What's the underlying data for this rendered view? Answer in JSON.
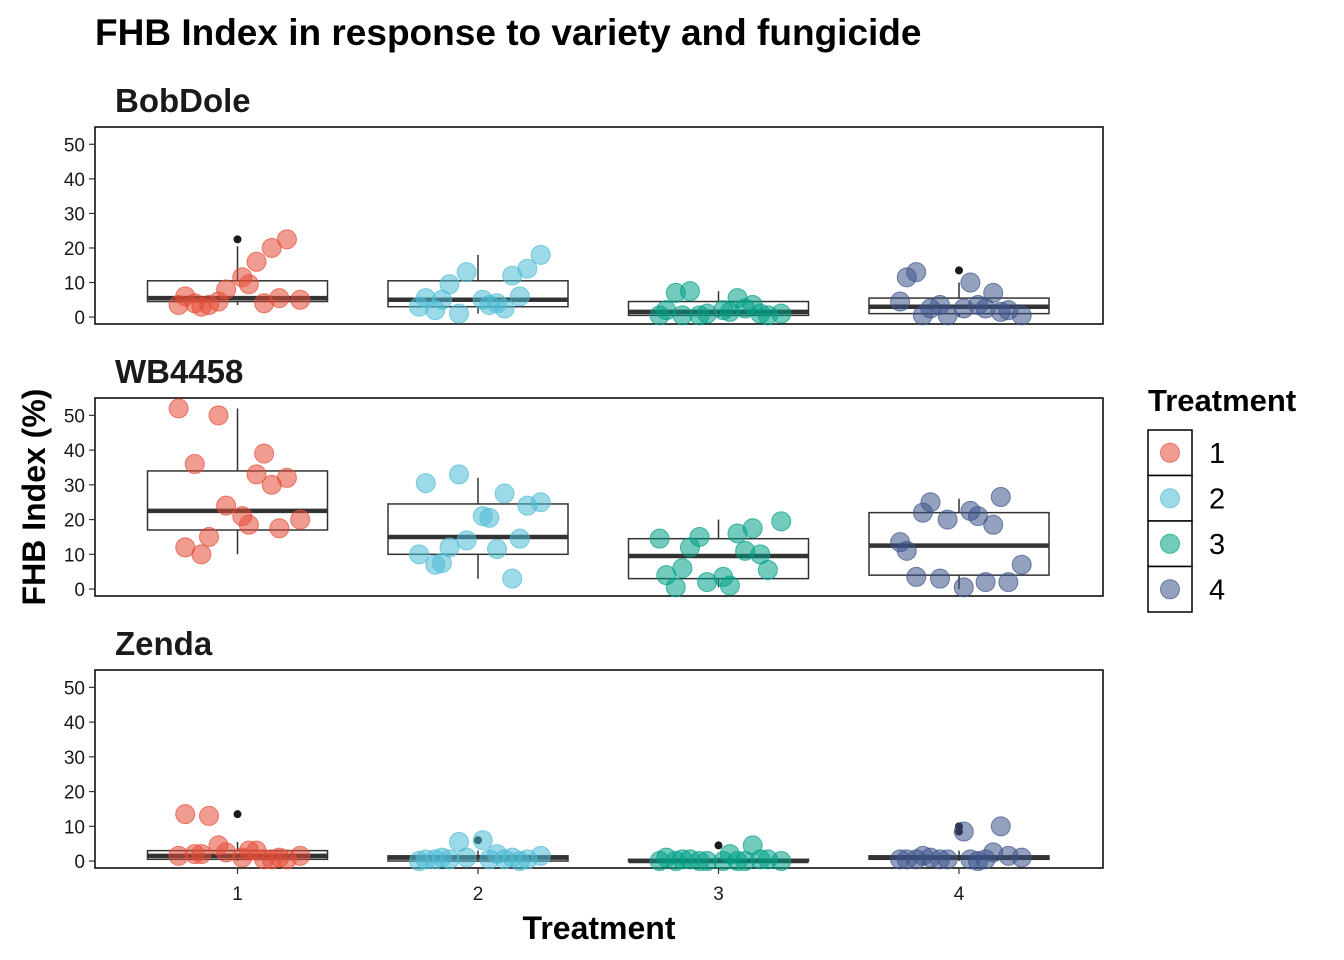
{
  "chart_data": {
    "type": "box+jitter",
    "title": "FHB Index in response to variety and fungicide",
    "xlabel": "Treatment",
    "ylabel": "FHB Index (%)",
    "categories": [
      "1",
      "2",
      "3",
      "4"
    ],
    "yticks": [
      0,
      10,
      20,
      30,
      40,
      50
    ],
    "ylim": [
      -2,
      55
    ],
    "legend": {
      "title": "Treatment",
      "position": "right",
      "items": [
        {
          "label": "1",
          "color": "#E64B35"
        },
        {
          "label": "2",
          "color": "#4DBBD5"
        },
        {
          "label": "3",
          "color": "#00A087"
        },
        {
          "label": "4",
          "color": "#3C5488"
        }
      ]
    },
    "facets": [
      {
        "name": "BobDole",
        "boxes": [
          {
            "treatment": "1",
            "q1": 4.5,
            "median": 5.5,
            "q3": 10.5,
            "lower": 3.5,
            "upper": 20.5,
            "outliers": [
              22.5
            ]
          },
          {
            "treatment": "2",
            "q1": 3.0,
            "median": 5.0,
            "q3": 10.5,
            "lower": 1.0,
            "upper": 18.0,
            "outliers": []
          },
          {
            "treatment": "3",
            "q1": 0.5,
            "median": 1.5,
            "q3": 4.5,
            "lower": 0.0,
            "upper": 7.5,
            "outliers": []
          },
          {
            "treatment": "4",
            "q1": 1.0,
            "median": 3.0,
            "q3": 5.5,
            "lower": 0.0,
            "upper": 10.0,
            "outliers": [
              13.5
            ]
          }
        ],
        "points": [
          {
            "treatment": "1",
            "values": [
              3.5,
              4.0,
              3.5,
              8.0,
              11.5,
              16.0,
              20.0,
              22.5,
              5.0,
              6.0,
              4.5,
              9.5,
              5.5,
              3.0,
              4.0
            ]
          },
          {
            "treatment": "2",
            "values": [
              3.0,
              2.0,
              9.5,
              13.0,
              5.0,
              4.0,
              12.0,
              14.0,
              18.0,
              5.5,
              1.0,
              3.5,
              6.0,
              5.0,
              2.5
            ]
          },
          {
            "treatment": "3",
            "values": [
              0.5,
              7.0,
              7.5,
              1.0,
              2.0,
              5.5,
              3.5,
              0.5,
              1.0,
              2.0,
              0.5,
              1.5,
              1.0,
              0.5,
              2.5
            ]
          },
          {
            "treatment": "4",
            "values": [
              4.5,
              13.0,
              2.5,
              0.5,
              2.5,
              3.5,
              7.0,
              2.0,
              0.5,
              11.5,
              3.5,
              10.0,
              1.5,
              0.5,
              2.5
            ]
          }
        ]
      },
      {
        "name": "WB4458",
        "boxes": [
          {
            "treatment": "1",
            "q1": 17.0,
            "median": 22.5,
            "q3": 34.0,
            "lower": 10.0,
            "upper": 52.0,
            "outliers": []
          },
          {
            "treatment": "2",
            "q1": 10.0,
            "median": 15.0,
            "q3": 24.5,
            "lower": 3.0,
            "upper": 32.0,
            "outliers": []
          },
          {
            "treatment": "3",
            "q1": 3.0,
            "median": 9.5,
            "q3": 14.5,
            "lower": 0.5,
            "upper": 20.0,
            "outliers": []
          },
          {
            "treatment": "4",
            "q1": 4.0,
            "median": 12.5,
            "q3": 22.0,
            "lower": 0.0,
            "upper": 26.0,
            "outliers": []
          }
        ],
        "points": [
          {
            "treatment": "1",
            "values": [
              52.0,
              36.0,
              15.0,
              24.0,
              21.0,
              33.0,
              30.0,
              32.0,
              20.0,
              12.0,
              50.0,
              18.5,
              17.5,
              10.0,
              39.0
            ]
          },
          {
            "treatment": "2",
            "values": [
              10.0,
              7.0,
              12.0,
              14.0,
              21.0,
              11.5,
              3.0,
              24.0,
              25.0,
              30.5,
              33.0,
              20.5,
              14.5,
              7.5,
              27.5
            ]
          },
          {
            "treatment": "3",
            "values": [
              14.5,
              0.5,
              12.0,
              2.0,
              3.5,
              16.0,
              17.5,
              5.5,
              19.5,
              4.0,
              15.0,
              1.0,
              10.0,
              6.0,
              11.0
            ]
          },
          {
            "treatment": "4",
            "values": [
              13.5,
              3.5,
              25.0,
              20.0,
              0.5,
              21.0,
              18.5,
              2.0,
              7.0,
              11.0,
              3.0,
              22.5,
              26.5,
              22.0,
              2.0
            ]
          }
        ]
      },
      {
        "name": "Zenda",
        "boxes": [
          {
            "treatment": "1",
            "q1": 0.5,
            "median": 1.5,
            "q3": 3.0,
            "lower": 0.0,
            "upper": 5.5,
            "outliers": [
              13.5
            ]
          },
          {
            "treatment": "2",
            "q1": 0.0,
            "median": 1.0,
            "q3": 1.5,
            "lower": 0.0,
            "upper": 3.0,
            "outliers": [
              6.0
            ]
          },
          {
            "treatment": "3",
            "q1": 0.0,
            "median": 0.0,
            "q3": 0.5,
            "lower": 0.0,
            "upper": 1.0,
            "outliers": [
              4.5
            ]
          },
          {
            "treatment": "4",
            "q1": 0.5,
            "median": 1.0,
            "q3": 1.5,
            "lower": 0.0,
            "upper": 3.0,
            "outliers": [
              8.5,
              10.0
            ]
          }
        ],
        "points": [
          {
            "treatment": "1",
            "values": [
              1.5,
              2.0,
              13.0,
              2.5,
              1.0,
              3.0,
              0.5,
              0.5,
              1.5,
              13.5,
              4.5,
              3.0,
              1.0,
              2.0,
              0.5
            ]
          },
          {
            "treatment": "2",
            "values": [
              0.0,
              0.5,
              0.5,
              1.0,
              6.0,
              2.0,
              1.0,
              0.5,
              1.5,
              0.5,
              5.5,
              0.5,
              0.0,
              1.0,
              0.5
            ]
          },
          {
            "treatment": "3",
            "values": [
              0.0,
              0.0,
              0.5,
              0.0,
              0.0,
              0.0,
              4.5,
              0.5,
              0.0,
              1.0,
              0.0,
              2.0,
              0.5,
              0.5,
              0.0
            ]
          },
          {
            "treatment": "4",
            "values": [
              0.5,
              0.5,
              1.0,
              0.5,
              8.5,
              0.0,
              2.5,
              1.5,
              1.0,
              0.5,
              0.5,
              0.5,
              10.0,
              1.5,
              0.5
            ]
          }
        ]
      }
    ]
  }
}
